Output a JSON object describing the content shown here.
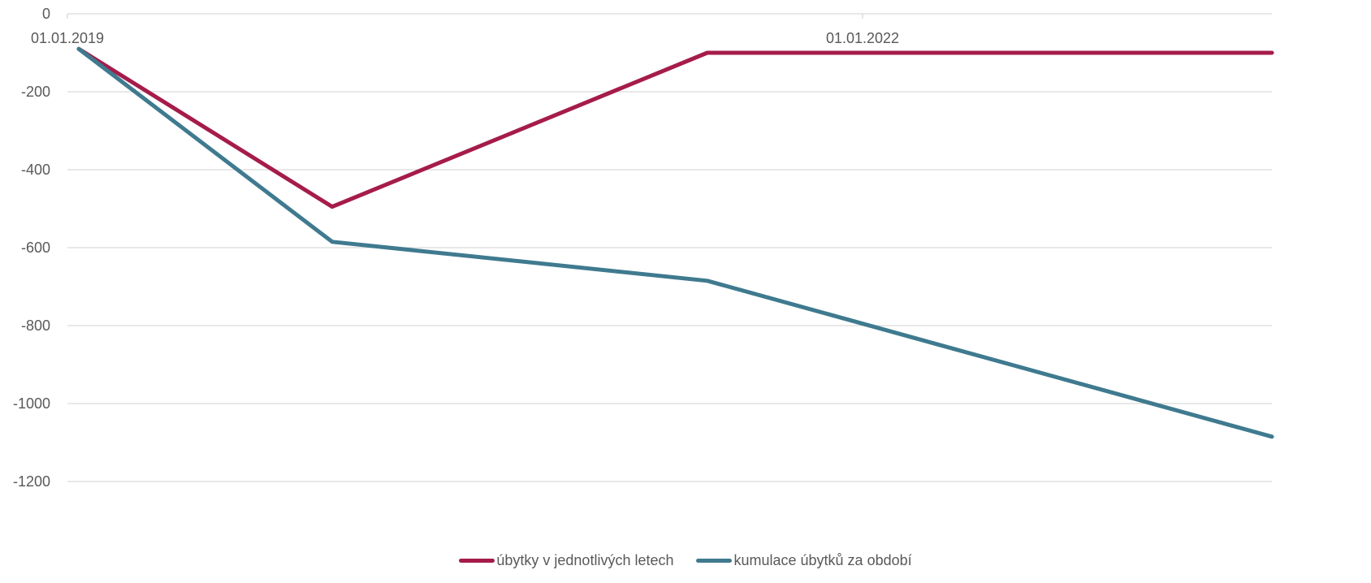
{
  "chart_data": {
    "type": "line",
    "x": [
      "2019-01-01",
      "2020-01-01",
      "2021-06-01",
      "2023-06-01"
    ],
    "x_tick_labels": [
      "01.01.2019",
      "01.01.2022"
    ],
    "y_tick_labels": [
      "0",
      "-200",
      "-400",
      "-600",
      "-800",
      "-1000",
      "-1200"
    ],
    "ylim": [
      -1200,
      0
    ],
    "grid": true,
    "legend_position": "bottom",
    "series": [
      {
        "name": "úbytky v jednotlivých letech",
        "color": "#A51C4B",
        "values": [
          -90,
          -495,
          -100,
          -100
        ]
      },
      {
        "name": "kumulace úbytků za období",
        "color": "#3F7A8F",
        "values": [
          -90,
          -585,
          -685,
          -1085
        ]
      }
    ]
  }
}
